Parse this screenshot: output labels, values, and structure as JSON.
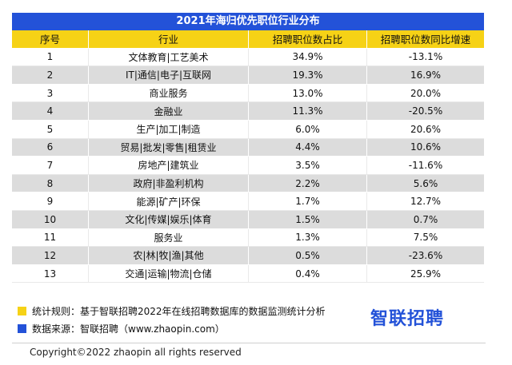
{
  "table": {
    "title": "2021年海归优先职位行业分布",
    "headers": [
      "序号",
      "行业",
      "招聘职位数占比",
      "招聘职位数同比增速"
    ],
    "rows": [
      [
        "1",
        "文体教育|工艺美术",
        "34.9%",
        "-13.1%"
      ],
      [
        "2",
        "IT|通信|电子|互联网",
        "19.3%",
        "16.9%"
      ],
      [
        "3",
        "商业服务",
        "13.0%",
        "20.0%"
      ],
      [
        "4",
        "金融业",
        "11.3%",
        "-20.5%"
      ],
      [
        "5",
        "生产|加工|制造",
        "6.0%",
        "20.6%"
      ],
      [
        "6",
        "贸易|批发|零售|租赁业",
        "4.4%",
        "10.6%"
      ],
      [
        "7",
        "房地产|建筑业",
        "3.5%",
        "-11.6%"
      ],
      [
        "8",
        "政府|非盈利机构",
        "2.2%",
        "5.6%"
      ],
      [
        "9",
        "能源|矿产|环保",
        "1.7%",
        "12.7%"
      ],
      [
        "10",
        "文化|传媒|娱乐|体育",
        "1.5%",
        "0.7%"
      ],
      [
        "11",
        "服务业",
        "1.3%",
        "7.5%"
      ],
      [
        "12",
        "农|林|牧|渔|其他",
        "0.5%",
        "-23.6%"
      ],
      [
        "13",
        "交通|运输|物流|仓储",
        "0.4%",
        "25.9%"
      ]
    ]
  },
  "notes": {
    "rule": "统计规则：基于智联招聘2022年在线招聘数据库的数据监测统计分析",
    "source": "数据来源：智联招聘（www.zhaopin.com）"
  },
  "brand": "智联招聘",
  "copyright": "Copyright©2022 zhaopin all rights reserved",
  "colors": {
    "title_bg": "#2352d8",
    "header_bg": "#f6d216",
    "stripe_bg": "#dcdcdc",
    "brand": "#2352d8"
  }
}
